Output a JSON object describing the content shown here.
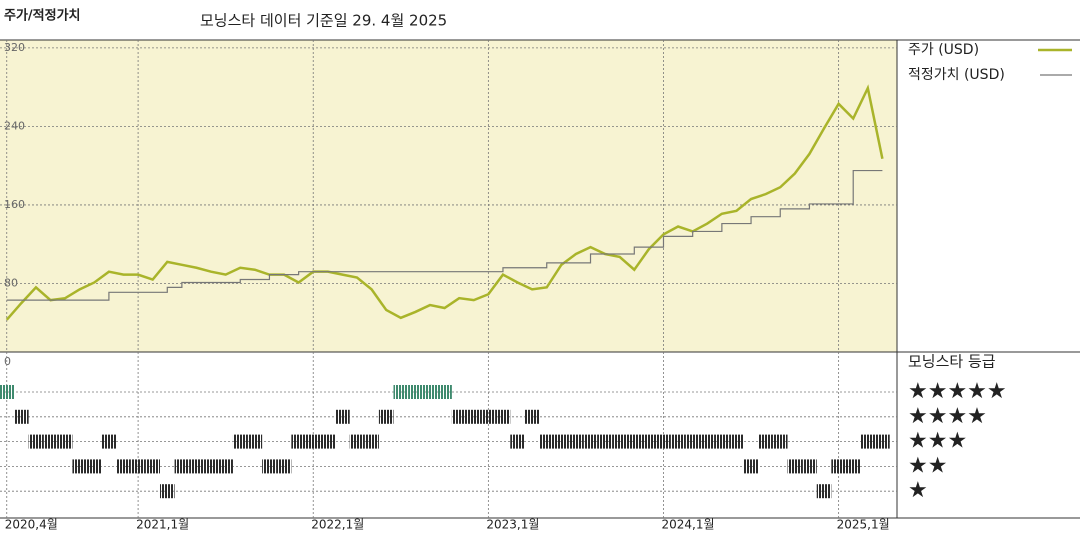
{
  "chart_data": {
    "type": "line",
    "title": "주가/적정가치",
    "subtitle": "모닝스타 데이터 기준일 29. 4월 2025",
    "x": [
      "2020-04",
      "2020-05",
      "2020-06",
      "2020-07",
      "2020-08",
      "2020-09",
      "2020-10",
      "2020-11",
      "2020-12",
      "2021-01",
      "2021-02",
      "2021-03",
      "2021-04",
      "2021-05",
      "2021-06",
      "2021-07",
      "2021-08",
      "2021-09",
      "2021-10",
      "2021-11",
      "2021-12",
      "2022-01",
      "2022-02",
      "2022-03",
      "2022-04",
      "2022-05",
      "2022-06",
      "2022-07",
      "2022-08",
      "2022-09",
      "2022-10",
      "2022-11",
      "2022-12",
      "2023-01",
      "2023-02",
      "2023-03",
      "2023-04",
      "2023-05",
      "2023-06",
      "2023-07",
      "2023-08",
      "2023-09",
      "2023-10",
      "2023-11",
      "2023-12",
      "2024-01",
      "2024-02",
      "2024-03",
      "2024-04",
      "2024-05",
      "2024-06",
      "2024-07",
      "2024-08",
      "2024-09",
      "2024-10",
      "2024-11",
      "2024-12",
      "2025-01",
      "2025-02",
      "2025-03",
      "2025-04"
    ],
    "series": [
      {
        "name": "주가 (USD)",
        "color": "#a9b42a",
        "step": false,
        "values": [
          43,
          60,
          76,
          63,
          65,
          74,
          81,
          92,
          89,
          89,
          84,
          102,
          99,
          96,
          92,
          89,
          96,
          94,
          89,
          89,
          81,
          92,
          92,
          89,
          86,
          74,
          53,
          45,
          51,
          58,
          55,
          65,
          63,
          69,
          89,
          81,
          74,
          76,
          99,
          110,
          117,
          110,
          107,
          94,
          115,
          130,
          138,
          133,
          141,
          151,
          154,
          166,
          171,
          178,
          192,
          212,
          238,
          263,
          248,
          279,
          207
        ]
      },
      {
        "name": "적정가치 (USD)",
        "color": "#777777",
        "step": true,
        "values": [
          63,
          63,
          63,
          63,
          63,
          63,
          63,
          71,
          71,
          71,
          71,
          76,
          81,
          81,
          81,
          81,
          84,
          84,
          89,
          89,
          92,
          92,
          92,
          92,
          92,
          92,
          92,
          92,
          92,
          92,
          92,
          92,
          92,
          92,
          96,
          96,
          96,
          101,
          101,
          101,
          110,
          110,
          110,
          117,
          117,
          128,
          128,
          133,
          133,
          141,
          141,
          148,
          148,
          156,
          156,
          161,
          161,
          161,
          195,
          195,
          195
        ]
      }
    ],
    "xlim": [
      "2020-04",
      "2025-05"
    ],
    "xticks": [
      {
        "value": "2020-04",
        "label": "2020,4월"
      },
      {
        "value": "2021-01",
        "label": "2021,1월"
      },
      {
        "value": "2022-01",
        "label": "2022,1월"
      },
      {
        "value": "2023-01",
        "label": "2023,1월"
      },
      {
        "value": "2024-01",
        "label": "2024,1월"
      },
      {
        "value": "2025-01",
        "label": "2025,1월"
      }
    ],
    "ylim": [
      0,
      328
    ],
    "yticks": [
      0,
      80,
      160,
      240,
      320
    ],
    "grid": true,
    "rating": {
      "title": "모닝스타 등급",
      "labels": [
        "★★★★★",
        "★★★★",
        "★★★",
        "★★",
        "★"
      ],
      "colors": [
        "#3f8a6e",
        "#2b2b2b"
      ],
      "values": [
        5,
        4,
        3,
        3,
        3,
        2,
        2,
        3,
        2,
        2,
        2,
        1,
        2,
        2,
        2,
        2,
        3,
        3,
        2,
        2,
        3,
        3,
        3,
        4,
        3,
        3,
        4,
        5,
        5,
        5,
        5,
        4,
        4,
        4,
        4,
        3,
        4,
        3,
        3,
        3,
        3,
        3,
        3,
        3,
        3,
        3,
        3,
        3,
        3,
        3,
        3,
        2,
        3,
        3,
        2,
        2,
        1,
        2,
        2,
        3,
        3
      ]
    }
  }
}
